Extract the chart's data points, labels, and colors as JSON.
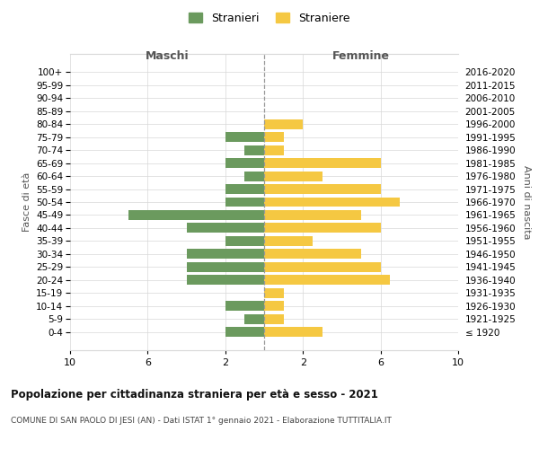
{
  "age_groups": [
    "100+",
    "95-99",
    "90-94",
    "85-89",
    "80-84",
    "75-79",
    "70-74",
    "65-69",
    "60-64",
    "55-59",
    "50-54",
    "45-49",
    "40-44",
    "35-39",
    "30-34",
    "25-29",
    "20-24",
    "15-19",
    "10-14",
    "5-9",
    "0-4"
  ],
  "birth_years": [
    "≤ 1920",
    "1921-1925",
    "1926-1930",
    "1931-1935",
    "1936-1940",
    "1941-1945",
    "1946-1950",
    "1951-1955",
    "1956-1960",
    "1961-1965",
    "1966-1970",
    "1971-1975",
    "1976-1980",
    "1981-1985",
    "1986-1990",
    "1991-1995",
    "1996-2000",
    "2001-2005",
    "2006-2010",
    "2011-2015",
    "2016-2020"
  ],
  "maschi": [
    0,
    0,
    0,
    0,
    0,
    2,
    1,
    2,
    1,
    2,
    2,
    7,
    4,
    2,
    4,
    4,
    4,
    0,
    2,
    1,
    2
  ],
  "femmine": [
    0,
    0,
    0,
    0,
    2,
    1,
    1,
    6,
    3,
    6,
    7,
    5,
    6,
    2.5,
    5,
    6,
    6.5,
    1,
    1,
    1,
    3
  ],
  "maschi_color": "#6b9a5e",
  "femmine_color": "#f5c842",
  "title": "Popolazione per cittadinanza straniera per età e sesso - 2021",
  "subtitle": "COMUNE DI SAN PAOLO DI JESI (AN) - Dati ISTAT 1° gennaio 2021 - Elaborazione TUTTITALIA.IT",
  "xlabel_left": "Maschi",
  "xlabel_right": "Femmine",
  "ylabel_left": "Fasce di età",
  "ylabel_right": "Anni di nascita",
  "legend_maschi": "Stranieri",
  "legend_femmine": "Straniere",
  "xlim": 10,
  "background_color": "#ffffff",
  "grid_color": "#d8d8d8"
}
